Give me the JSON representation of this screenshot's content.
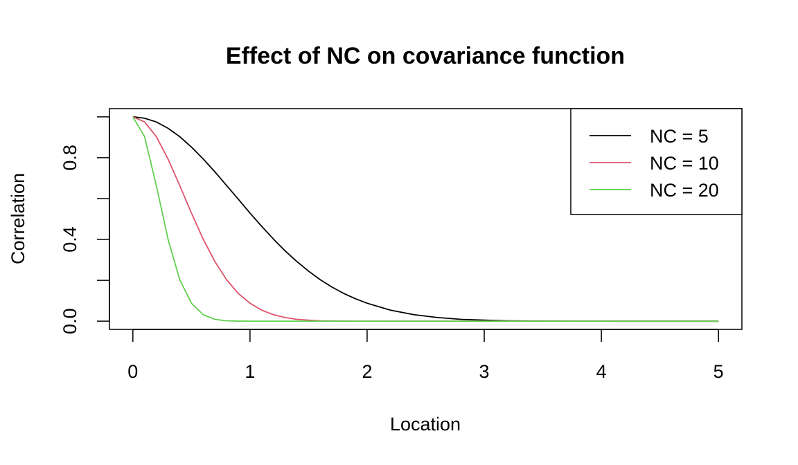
{
  "chart_data": {
    "type": "line",
    "title": "Effect of NC on covariance function",
    "xlabel": "Location",
    "ylabel": "Correlation",
    "xlim": [
      -0.2,
      5.2
    ],
    "ylim": [
      -0.04,
      1.04
    ],
    "xticks": [
      0,
      1,
      2,
      3,
      4,
      5
    ],
    "yticks": [
      0.0,
      0.2,
      0.4,
      0.6,
      0.8,
      1.0
    ],
    "ytick_labels": [
      "0.0",
      "",
      "0.4",
      "",
      "0.8",
      ""
    ],
    "grid": false,
    "legend_position": "top-right",
    "x": [
      0,
      0.1,
      0.2,
      0.3,
      0.4,
      0.5,
      0.6,
      0.7,
      0.8,
      0.9,
      1.0,
      1.1,
      1.2,
      1.3,
      1.4,
      1.5,
      1.6,
      1.7,
      1.8,
      1.9,
      2.0,
      2.2,
      2.4,
      2.6,
      2.8,
      3.0,
      3.2,
      3.4,
      3.6,
      3.8,
      4.0,
      4.2,
      4.4,
      4.6,
      4.8,
      5.0
    ],
    "series": [
      {
        "name": "NC = 5",
        "color": "#000000",
        "values": [
          1.0,
          0.993,
          0.975,
          0.944,
          0.903,
          0.852,
          0.794,
          0.731,
          0.664,
          0.597,
          0.529,
          0.464,
          0.402,
          0.344,
          0.292,
          0.245,
          0.203,
          0.167,
          0.136,
          0.11,
          0.088,
          0.054,
          0.032,
          0.018,
          0.009,
          0.005,
          0.002,
          0.001,
          0.0005,
          0.0002,
          0.0001,
          0.0,
          0.0,
          0.0,
          0.0,
          0.0
        ]
      },
      {
        "name": "NC = 10",
        "color": "#df536b",
        "values": [
          1.0,
          0.975,
          0.903,
          0.794,
          0.664,
          0.529,
          0.402,
          0.292,
          0.203,
          0.136,
          0.088,
          0.054,
          0.032,
          0.018,
          0.009,
          0.005,
          0.002,
          0.001,
          0.0005,
          0.0002,
          0.0001,
          0.0,
          0.0,
          0.0,
          0.0,
          0.0,
          0.0,
          0.0,
          0.0,
          0.0,
          0.0,
          0.0,
          0.0,
          0.0,
          0.0,
          0.0
        ]
      },
      {
        "name": "NC = 20",
        "color": "#61d04f",
        "values": [
          1.0,
          0.903,
          0.664,
          0.402,
          0.203,
          0.088,
          0.032,
          0.009,
          0.002,
          0.0005,
          0.0001,
          0.0,
          0.0,
          0.0,
          0.0,
          0.0,
          0.0,
          0.0,
          0.0,
          0.0,
          0.0,
          0.0,
          0.0,
          0.0,
          0.0,
          0.0,
          0.0,
          0.0,
          0.0,
          0.0,
          0.0,
          0.0,
          0.0,
          0.0,
          0.0,
          0.0
        ]
      }
    ]
  }
}
